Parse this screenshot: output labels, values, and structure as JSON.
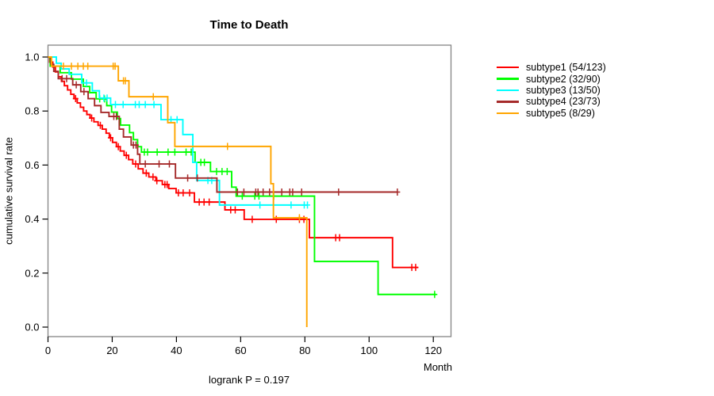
{
  "title": "Time to Death",
  "axes": {
    "x_label": "Month",
    "y_label": "cumulative survival rate",
    "x_ticks": [
      0,
      20,
      40,
      60,
      80,
      100,
      120
    ],
    "y_ticks": [
      "0.0",
      "0.2",
      "0.4",
      "0.6",
      "0.8",
      "1.0"
    ]
  },
  "footer": {
    "logrank_text": "logrank P = 0.197"
  },
  "chart_data": {
    "type": "line",
    "subtype": "kaplan-meier-step",
    "title": "Time to Death",
    "xlabel": "Month",
    "ylabel": "cumulative survival rate",
    "xlim": [
      0,
      125.5
    ],
    "ylim": [
      0,
      1.04
    ],
    "grid": false,
    "legend_position": "right-outside",
    "logrank_p": 0.197,
    "frame_color": "#848484",
    "axis_color": "#000000",
    "series": [
      {
        "name": "subtype1",
        "label": "subtype1 (54/123)",
        "events": 54,
        "n": 123,
        "color": "#FF0000",
        "steps": [
          [
            0,
            1.0
          ],
          [
            0.5,
            0.981
          ],
          [
            1.5,
            0.963
          ],
          [
            2.3,
            0.945
          ],
          [
            3.2,
            0.927
          ],
          [
            4.2,
            0.91
          ],
          [
            5.1,
            0.894
          ],
          [
            6.1,
            0.878
          ],
          [
            7.1,
            0.862
          ],
          [
            8.1,
            0.846
          ],
          [
            9.1,
            0.83
          ],
          [
            10.1,
            0.814
          ],
          [
            11.1,
            0.8
          ],
          [
            12.1,
            0.787
          ],
          [
            13.1,
            0.774
          ],
          [
            14.3,
            0.76
          ],
          [
            15.6,
            0.747
          ],
          [
            16.9,
            0.733
          ],
          [
            18.1,
            0.718
          ],
          [
            19.1,
            0.701
          ],
          [
            20.1,
            0.684
          ],
          [
            21.3,
            0.668
          ],
          [
            22.5,
            0.652
          ],
          [
            23.7,
            0.636
          ],
          [
            25.1,
            0.62
          ],
          [
            26.4,
            0.604
          ],
          [
            28.1,
            0.586
          ],
          [
            29.6,
            0.57
          ],
          [
            31.4,
            0.556
          ],
          [
            33.6,
            0.542
          ],
          [
            35.6,
            0.528
          ],
          [
            37.6,
            0.513
          ],
          [
            39.9,
            0.497
          ],
          [
            45.6,
            0.463
          ],
          [
            55.1,
            0.434
          ],
          [
            61.1,
            0.399
          ],
          [
            81.4,
            0.331
          ],
          [
            107.3,
            0.221
          ]
        ],
        "end": 115.3,
        "censors": [
          8.6,
          13.6,
          16.3,
          19.5,
          21.9,
          24.4,
          27.3,
          30.6,
          32.7,
          33.9,
          36.4,
          37.1,
          40.6,
          42.1,
          44.1,
          47.1,
          48.6,
          50.2,
          56.9,
          58.3,
          63.6,
          71.1,
          78.3,
          79.7,
          89.6,
          90.8,
          113.3,
          114.5
        ]
      },
      {
        "name": "subtype2",
        "label": "subtype2 (32/90)",
        "events": 32,
        "n": 90,
        "color": "#00FF00",
        "steps": [
          [
            0,
            1.0
          ],
          [
            0.7,
            0.966
          ],
          [
            3.8,
            0.942
          ],
          [
            7.3,
            0.918
          ],
          [
            11.0,
            0.891
          ],
          [
            13.0,
            0.868
          ],
          [
            15.0,
            0.845
          ],
          [
            18.3,
            0.82
          ],
          [
            19.8,
            0.796
          ],
          [
            21.6,
            0.772
          ],
          [
            22.6,
            0.748
          ],
          [
            25.4,
            0.72
          ],
          [
            26.6,
            0.694
          ],
          [
            27.9,
            0.668
          ],
          [
            29.1,
            0.648
          ],
          [
            45.8,
            0.61
          ],
          [
            50.6,
            0.576
          ],
          [
            57.2,
            0.518
          ],
          [
            58.6,
            0.485
          ],
          [
            83.0,
            0.243
          ],
          [
            102.8,
            0.121
          ]
        ],
        "end": 120.9,
        "censors": [
          16.1,
          17.6,
          30.0,
          31.0,
          34.0,
          37.4,
          39.5,
          43.0,
          44.6,
          47.6,
          48.7,
          52.5,
          54.2,
          55.8,
          60.5,
          64.4,
          65.7,
          70.3,
          120.4
        ]
      },
      {
        "name": "subtype3",
        "label": "subtype3 (13/50)",
        "events": 13,
        "n": 50,
        "color": "#00FFFF",
        "steps": [
          [
            0,
            1.0
          ],
          [
            2.6,
            0.977
          ],
          [
            4.1,
            0.956
          ],
          [
            6.6,
            0.936
          ],
          [
            10.5,
            0.904
          ],
          [
            13.8,
            0.875
          ],
          [
            16.0,
            0.848
          ],
          [
            19.5,
            0.824
          ],
          [
            35.2,
            0.768
          ],
          [
            42.0,
            0.713
          ],
          [
            45.1,
            0.61
          ],
          [
            46.3,
            0.543
          ],
          [
            53.4,
            0.452
          ]
        ],
        "end": 81.0,
        "censors": [
          12.0,
          17.4,
          18.4,
          21.0,
          23.4,
          27.2,
          28.4,
          30.3,
          33.0,
          38.3,
          40.2,
          49.8,
          51.0,
          66.0,
          75.7,
          79.8,
          80.8
        ]
      },
      {
        "name": "subtype4",
        "label": "subtype4 (23/73)",
        "events": 23,
        "n": 73,
        "color": "#A52A2A",
        "steps": [
          [
            0,
            1.0
          ],
          [
            0.9,
            0.973
          ],
          [
            1.8,
            0.947
          ],
          [
            3.2,
            0.92
          ],
          [
            7.7,
            0.897
          ],
          [
            10.2,
            0.872
          ],
          [
            12.5,
            0.846
          ],
          [
            14.5,
            0.82
          ],
          [
            16.5,
            0.795
          ],
          [
            19.0,
            0.78
          ],
          [
            22.2,
            0.733
          ],
          [
            23.5,
            0.704
          ],
          [
            25.9,
            0.674
          ],
          [
            27.9,
            0.64
          ],
          [
            28.6,
            0.604
          ],
          [
            39.7,
            0.552
          ],
          [
            52.6,
            0.5
          ]
        ],
        "end": 108.9,
        "censors": [
          4.4,
          5.8,
          8.8,
          11.2,
          20.5,
          21.3,
          26.6,
          27.4,
          30.3,
          34.6,
          37.8,
          43.5,
          46.5,
          59.0,
          61.0,
          64.7,
          65.4,
          67.0,
          69.0,
          72.8,
          75.3,
          76.2,
          79.0,
          90.5,
          108.8
        ]
      },
      {
        "name": "subtype5",
        "label": "subtype5 (8/29)",
        "events": 8,
        "n": 29,
        "color": "#FFA500",
        "steps": [
          [
            0,
            1.0
          ],
          [
            1.1,
            0.966
          ],
          [
            21.9,
            0.912
          ],
          [
            25.2,
            0.853
          ],
          [
            37.3,
            0.757
          ],
          [
            39.5,
            0.669
          ],
          [
            69.4,
            0.531
          ],
          [
            70.2,
            0.405
          ],
          [
            80.6,
            0.0
          ]
        ],
        "end": 80.6,
        "censors": [
          4.8,
          7.3,
          9.3,
          11.0,
          12.4,
          20.3,
          20.9,
          23.5,
          24.1,
          32.8,
          55.9,
          78.3
        ]
      }
    ]
  }
}
